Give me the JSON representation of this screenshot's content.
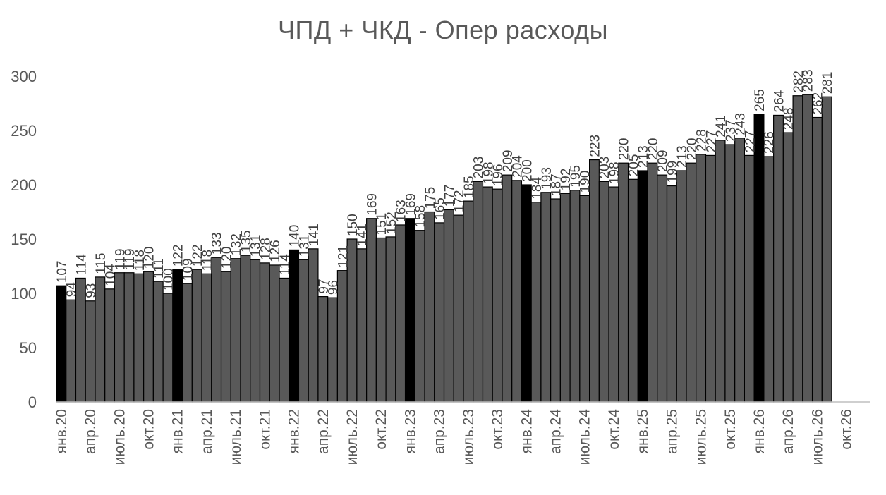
{
  "chart_data": {
    "type": "bar",
    "title": "ЧПД + ЧКД - Опер расходы",
    "xlabel": "",
    "ylabel": "",
    "ylim": [
      0,
      300
    ],
    "yticks": [
      0,
      50,
      100,
      150,
      200,
      250,
      300
    ],
    "grid": false,
    "legend": "none",
    "colors": {
      "regular": "#595959",
      "january": "#000000",
      "edge": "#000000"
    },
    "x_tick_labels": [
      "янв.20",
      "апр.20",
      "июль.20",
      "окт.20",
      "янв.21",
      "апр.21",
      "июль.21",
      "окт.21",
      "янв.22",
      "апр.22",
      "июль.22",
      "окт.22",
      "янв.23",
      "апр.23",
      "июль.23",
      "окт.23",
      "янв.24",
      "апр.24",
      "июль.24",
      "окт.24",
      "янв.25",
      "апр.25",
      "июль.25",
      "окт.25",
      "янв.26",
      "апр.26",
      "июль.26",
      "окт.26"
    ],
    "x_tick_every_months": 3,
    "period_slots": 84,
    "values": [
      107,
      94,
      114,
      93,
      115,
      104,
      119,
      119,
      118,
      120,
      111,
      100,
      122,
      109,
      122,
      118,
      133,
      120,
      132,
      135,
      131,
      128,
      126,
      114,
      140,
      131,
      141,
      97,
      96,
      121,
      150,
      141,
      169,
      151,
      152,
      163,
      169,
      158,
      175,
      165,
      177,
      172,
      185,
      203,
      198,
      196,
      209,
      204,
      200,
      184,
      193,
      187,
      192,
      195,
      190,
      223,
      203,
      198,
      220,
      205,
      213,
      220,
      209,
      199,
      213,
      220,
      228,
      227,
      241,
      237,
      243,
      227,
      265,
      226,
      264,
      248,
      282,
      283,
      262,
      281
    ],
    "highlight_every": 12
  }
}
